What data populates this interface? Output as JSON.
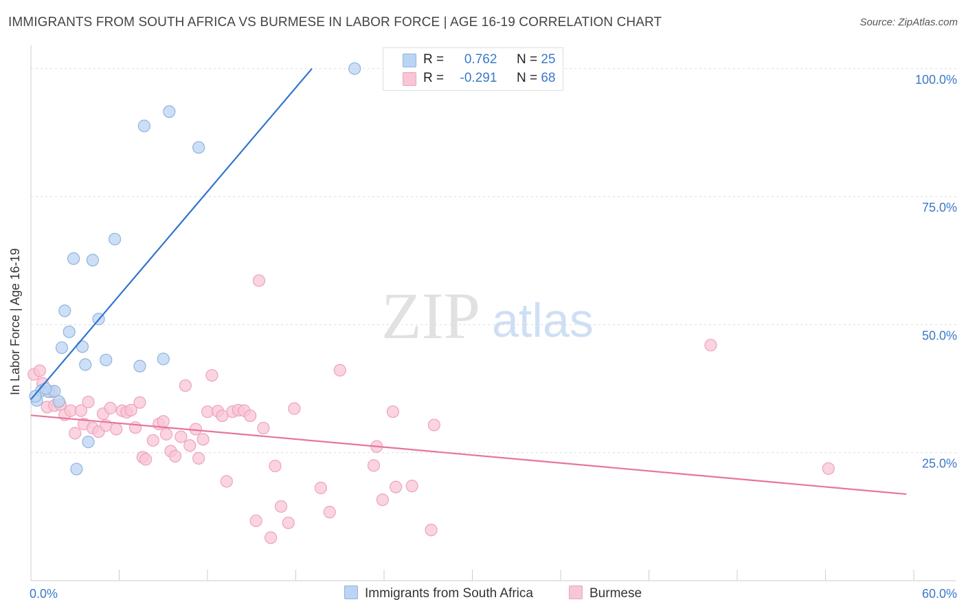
{
  "header": {
    "title": "IMMIGRANTS FROM SOUTH AFRICA VS BURMESE IN LABOR FORCE | AGE 16-19 CORRELATION CHART",
    "source": "Source: ZipAtlas.com"
  },
  "legend": {
    "r_label": "R =",
    "n_label": "N =",
    "series": [
      {
        "r": "0.762",
        "n": "25"
      },
      {
        "r": "-0.291",
        "n": "68"
      }
    ]
  },
  "watermark": {
    "zip": "ZIP",
    "atlas": "atlas"
  },
  "colors": {
    "blue_fill": "#bcd4f3",
    "blue_stroke": "#8fb2e0",
    "blue_line": "#2f74cf",
    "pink_fill": "#f8c6d6",
    "pink_stroke": "#eea2ba",
    "pink_line": "#e8749b",
    "tick_text": "#3a78c9"
  },
  "chart_data": {
    "type": "scatter",
    "ylabel": "In Labor Force | Age 16-19",
    "xlim": [
      0,
      60
    ],
    "ylim": [
      0,
      104
    ],
    "x_tick_labels": [
      "0.0%",
      "60.0%"
    ],
    "y_ticks": [
      25,
      50,
      75,
      100
    ],
    "y_tick_labels": [
      "25.0%",
      "50.0%",
      "75.0%",
      "100.0%"
    ],
    "grid": true,
    "series": [
      {
        "name": "Immigrants from South Africa",
        "color": "#bcd4f3",
        "trend": {
          "x": [
            0.0,
            19.1
          ],
          "y": [
            35.4,
            100.0
          ]
        },
        "points": [
          [
            0.4,
            35.2
          ],
          [
            0.7,
            37.1
          ],
          [
            1.2,
            36.9
          ],
          [
            1.6,
            37.0
          ],
          [
            1.9,
            35.0
          ],
          [
            2.1,
            45.5
          ],
          [
            2.3,
            52.7
          ],
          [
            2.6,
            48.6
          ],
          [
            2.9,
            62.9
          ],
          [
            3.5,
            45.7
          ],
          [
            3.7,
            42.2
          ],
          [
            3.9,
            27.1
          ],
          [
            4.2,
            62.6
          ],
          [
            4.6,
            51.1
          ],
          [
            5.1,
            43.1
          ],
          [
            5.7,
            66.7
          ],
          [
            7.4,
            41.9
          ],
          [
            7.7,
            88.8
          ],
          [
            9.0,
            43.3
          ],
          [
            9.4,
            91.6
          ],
          [
            11.4,
            84.6
          ],
          [
            22.0,
            100.0
          ],
          [
            3.1,
            21.8
          ],
          [
            1.0,
            37.5
          ],
          [
            0.3,
            36.0
          ]
        ]
      },
      {
        "name": "Burmese",
        "color": "#f8c6d6",
        "trend": {
          "x": [
            0.0,
            59.5
          ],
          "y": [
            32.3,
            16.9
          ]
        },
        "points": [
          [
            0.2,
            40.3
          ],
          [
            0.8,
            38.5
          ],
          [
            1.1,
            33.9
          ],
          [
            1.4,
            36.9
          ],
          [
            1.6,
            34.2
          ],
          [
            2.0,
            34.4
          ],
          [
            2.3,
            32.4
          ],
          [
            2.7,
            33.2
          ],
          [
            3.0,
            28.8
          ],
          [
            3.4,
            33.2
          ],
          [
            3.6,
            30.6
          ],
          [
            3.9,
            34.9
          ],
          [
            4.2,
            29.8
          ],
          [
            4.6,
            29.1
          ],
          [
            4.9,
            32.6
          ],
          [
            5.1,
            30.3
          ],
          [
            5.4,
            33.7
          ],
          [
            5.8,
            29.6
          ],
          [
            6.2,
            33.2
          ],
          [
            6.5,
            32.9
          ],
          [
            6.8,
            33.3
          ],
          [
            7.1,
            29.9
          ],
          [
            7.4,
            34.8
          ],
          [
            7.6,
            24.1
          ],
          [
            7.8,
            23.7
          ],
          [
            8.3,
            27.4
          ],
          [
            8.7,
            30.6
          ],
          [
            9.0,
            31.1
          ],
          [
            9.2,
            28.6
          ],
          [
            9.5,
            25.3
          ],
          [
            9.8,
            24.3
          ],
          [
            10.2,
            28.1
          ],
          [
            10.5,
            38.1
          ],
          [
            10.8,
            26.4
          ],
          [
            11.2,
            29.6
          ],
          [
            11.4,
            23.9
          ],
          [
            11.7,
            27.6
          ],
          [
            12.0,
            33.0
          ],
          [
            12.3,
            40.1
          ],
          [
            12.7,
            33.1
          ],
          [
            13.0,
            32.2
          ],
          [
            13.3,
            19.4
          ],
          [
            13.7,
            33.0
          ],
          [
            14.1,
            33.3
          ],
          [
            14.5,
            33.2
          ],
          [
            14.9,
            32.2
          ],
          [
            15.3,
            11.7
          ],
          [
            15.5,
            58.6
          ],
          [
            15.8,
            29.8
          ],
          [
            16.3,
            8.4
          ],
          [
            16.6,
            22.4
          ],
          [
            17.0,
            14.5
          ],
          [
            17.5,
            11.3
          ],
          [
            17.9,
            33.6
          ],
          [
            19.7,
            18.1
          ],
          [
            20.3,
            13.4
          ],
          [
            21.0,
            41.1
          ],
          [
            23.3,
            22.5
          ],
          [
            23.5,
            26.2
          ],
          [
            23.9,
            15.8
          ],
          [
            24.6,
            33.0
          ],
          [
            24.8,
            18.3
          ],
          [
            25.9,
            18.5
          ],
          [
            27.2,
            9.9
          ],
          [
            27.4,
            30.4
          ],
          [
            46.2,
            46.0
          ],
          [
            54.2,
            21.9
          ],
          [
            0.6,
            41.0
          ]
        ]
      }
    ]
  }
}
